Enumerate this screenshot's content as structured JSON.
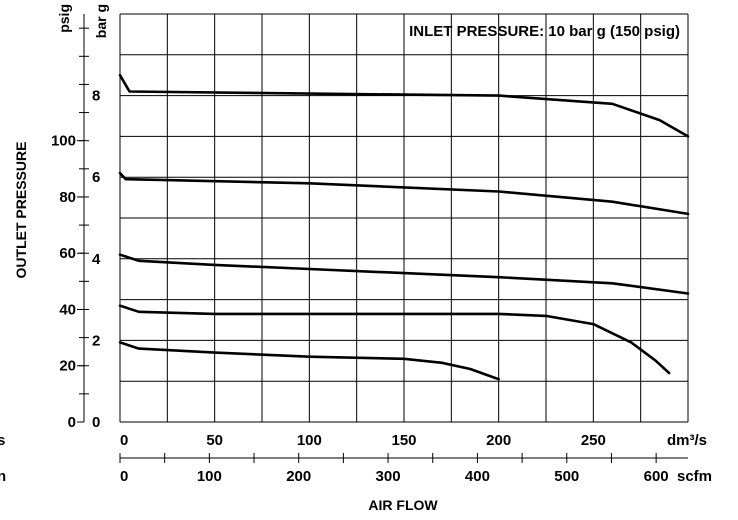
{
  "chart_data": {
    "type": "line",
    "annotation": "INLET PRESSURE: 10 bar g (150 psig)",
    "ylabel": "OUTLET PRESSURE",
    "xlabel": "AIR FLOW",
    "y_unit_left": "psig",
    "y_unit_right": "bar g",
    "x_unit_top": "dm³/s",
    "x_unit_bottom": "scfm",
    "edge_left_top": "s",
    "edge_left_bottom": "n",
    "ylim_bar": [
      0,
      10
    ],
    "xlim_dm3s": [
      0,
      300
    ],
    "grid": true,
    "y_ticks_bar": [
      "0",
      "2",
      "4",
      "6",
      "8"
    ],
    "y_ticks_psig": [
      "0",
      "20",
      "40",
      "60",
      "80",
      "100"
    ],
    "x_ticks_dm3s": [
      "0",
      "50",
      "100",
      "150",
      "200",
      "250"
    ],
    "x_ticks_scfm": [
      "0",
      "100",
      "200",
      "300",
      "400",
      "500",
      "600"
    ],
    "series": [
      {
        "x": [
          0,
          5,
          100,
          200,
          260,
          285,
          300
        ],
        "y": [
          8.5,
          8.1,
          8.05,
          8.0,
          7.8,
          7.4,
          7.0
        ]
      },
      {
        "x": [
          0,
          3,
          100,
          200,
          260,
          300
        ],
        "y": [
          6.1,
          5.95,
          5.85,
          5.65,
          5.4,
          5.1
        ]
      },
      {
        "x": [
          0,
          10,
          50,
          100,
          200,
          260,
          300
        ],
        "y": [
          4.1,
          3.95,
          3.85,
          3.75,
          3.55,
          3.4,
          3.15
        ]
      },
      {
        "x": [
          0,
          10,
          50,
          100,
          200,
          225,
          250,
          270,
          283,
          290
        ],
        "y": [
          2.85,
          2.7,
          2.65,
          2.65,
          2.65,
          2.6,
          2.4,
          1.95,
          1.5,
          1.2
        ]
      },
      {
        "x": [
          0,
          10,
          50,
          100,
          150,
          170,
          185,
          194,
          200
        ],
        "y": [
          1.95,
          1.8,
          1.7,
          1.6,
          1.55,
          1.45,
          1.3,
          1.15,
          1.05
        ]
      }
    ]
  }
}
